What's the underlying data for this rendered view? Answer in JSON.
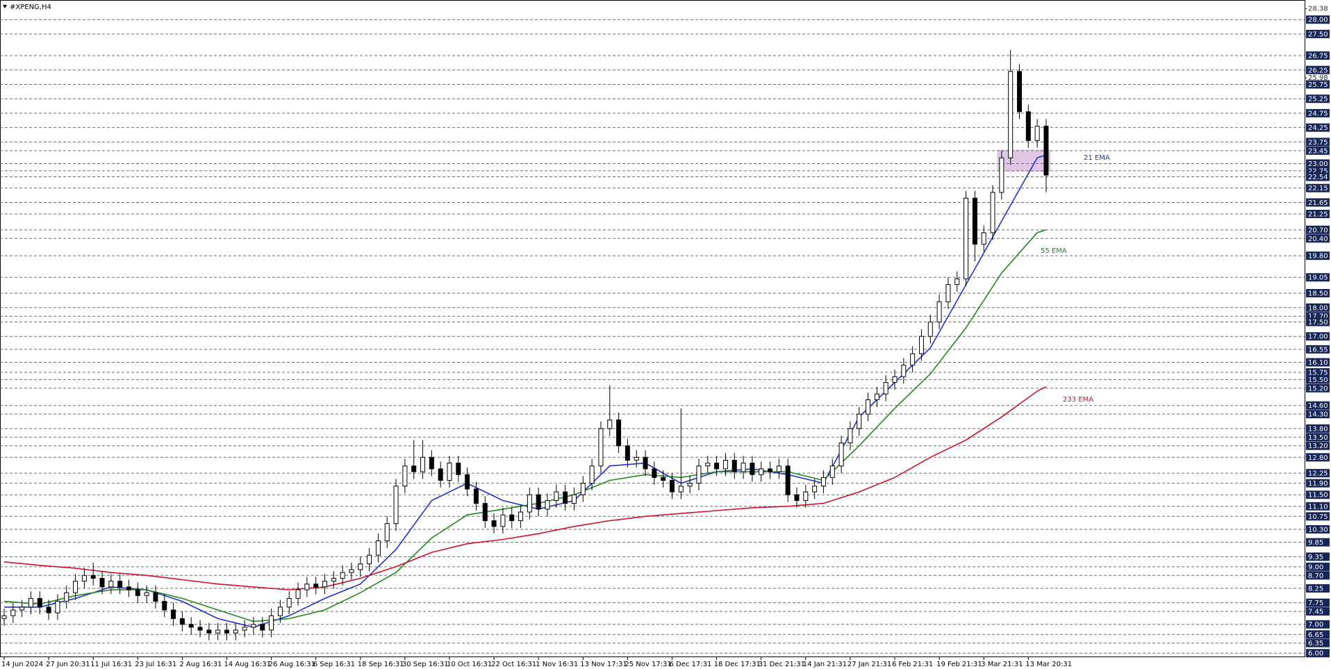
{
  "chart_data": {
    "type": "candlestick",
    "title": "#XPENG,H4",
    "categories": [
      "14 Jun 2024",
      null,
      null,
      null,
      null,
      "27 Jun 20:31",
      null,
      null,
      null,
      null,
      "11 Jul 16:31",
      null,
      null,
      null,
      null,
      "23 Jul 16:31",
      null,
      null,
      null,
      null,
      "2 Aug 16:31",
      null,
      null,
      null,
      null,
      "14 Aug 16:31",
      null,
      null,
      null,
      null,
      "26 Aug 16:31",
      null,
      null,
      null,
      null,
      "6 Sep 16:31",
      null,
      null,
      null,
      null,
      "18 Sep 16:31",
      null,
      null,
      null,
      null,
      "30 Sep 16:31",
      null,
      null,
      null,
      null,
      "10 Oct 16:31",
      null,
      null,
      null,
      null,
      "22 Oct 16:31",
      null,
      null,
      null,
      null,
      "1 Nov 16:31",
      null,
      null,
      null,
      null,
      "13 Nov 17:31",
      null,
      null,
      null,
      null,
      "25 Nov 17:31",
      null,
      null,
      null,
      null,
      "6 Dec 17:31",
      null,
      null,
      null,
      null,
      "18 Dec 17:31",
      null,
      null,
      null,
      null,
      "31 Dec 21:31",
      null,
      null,
      null,
      null,
      "14 Jan 21:31",
      null,
      null,
      null,
      null,
      "27 Jan 21:31",
      null,
      null,
      null,
      null,
      "6 Feb 21:31",
      null,
      null,
      null,
      null,
      "19 Feb 21:31",
      null,
      null,
      null,
      null,
      "3 Mar 21:31",
      null,
      null,
      null,
      null,
      "13 Mar 20:31",
      null,
      null
    ],
    "open": [
      7.2,
      7.3,
      7.5,
      7.6,
      7.9,
      7.6,
      7.4,
      7.8,
      8.1,
      8.5,
      8.7,
      8.6,
      8.3,
      8.5,
      8.3,
      8.2,
      8.0,
      8.1,
      7.8,
      7.5,
      7.2,
      7.0,
      6.9,
      6.8,
      6.7,
      6.8,
      6.7,
      6.8,
      6.9,
      7.0,
      6.8,
      7.3,
      7.6,
      7.9,
      8.2,
      8.4,
      8.3,
      8.5,
      8.6,
      8.8,
      8.9,
      9.1,
      9.4,
      9.9,
      10.5,
      11.8,
      12.5,
      12.3,
      12.8,
      12.4,
      12.0,
      12.6,
      12.2,
      11.7,
      11.2,
      10.6,
      10.4,
      10.8,
      10.6,
      10.9,
      11.5,
      11.0,
      11.3,
      11.6,
      11.2,
      11.5,
      11.9,
      12.5,
      13.8,
      14.1,
      13.2,
      12.7,
      12.8,
      12.4,
      12.1,
      12.0,
      11.6,
      11.8,
      11.9,
      12.5,
      12.6,
      12.4,
      12.7,
      12.3,
      12.6,
      12.2,
      12.4,
      12.3,
      12.5,
      11.5,
      11.3,
      11.6,
      11.8,
      12.1,
      12.5,
      13.3,
      13.8,
      14.3,
      14.8,
      15.0,
      15.4,
      15.6,
      16.0,
      16.4,
      17.0,
      17.5,
      18.2,
      18.8,
      19.0,
      21.8,
      20.2,
      20.6,
      22.0,
      23.2,
      26.2,
      24.8,
      23.8,
      24.3
    ],
    "high": [
      7.55,
      7.75,
      7.85,
      8.15,
      8.15,
      7.85,
      8.05,
      8.35,
      8.75,
      8.95,
      9.15,
      8.85,
      8.75,
      8.75,
      8.55,
      8.45,
      8.35,
      8.35,
      8.05,
      7.75,
      7.45,
      7.25,
      7.15,
      7.05,
      7.05,
      7.05,
      7.05,
      7.15,
      7.25,
      7.25,
      7.55,
      7.85,
      8.15,
      8.45,
      8.65,
      8.65,
      8.75,
      8.85,
      9.05,
      9.15,
      9.35,
      9.65,
      10.15,
      10.75,
      12.05,
      12.75,
      13.4,
      13.4,
      13.05,
      12.65,
      12.85,
      12.85,
      12.45,
      11.95,
      11.45,
      10.85,
      11.05,
      11.05,
      11.15,
      11.75,
      11.75,
      11.55,
      11.85,
      11.85,
      11.75,
      12.15,
      12.75,
      14.05,
      15.3,
      14.35,
      13.45,
      13.05,
      13.05,
      12.65,
      12.35,
      12.25,
      14.5,
      12.15,
      12.75,
      12.85,
      12.85,
      12.95,
      12.95,
      12.85,
      12.85,
      12.65,
      12.65,
      12.75,
      12.75,
      11.75,
      11.85,
      12.05,
      12.35,
      12.75,
      13.55,
      14.05,
      14.55,
      15.05,
      15.25,
      15.65,
      15.85,
      16.25,
      16.65,
      17.25,
      17.75,
      18.45,
      19.05,
      19.25,
      22.05,
      22.05,
      20.85,
      22.25,
      23.45,
      26.95,
      26.45,
      25.05,
      24.55,
      24.55
    ],
    "low": [
      6.95,
      7.05,
      7.25,
      7.35,
      7.35,
      7.15,
      7.15,
      7.55,
      7.85,
      8.25,
      8.35,
      8.05,
      8.05,
      8.05,
      7.95,
      7.75,
      7.75,
      7.55,
      7.25,
      6.95,
      6.75,
      6.65,
      6.55,
      6.45,
      6.45,
      6.45,
      6.45,
      6.55,
      6.65,
      6.55,
      6.55,
      7.05,
      7.35,
      7.65,
      7.95,
      8.05,
      8.05,
      8.25,
      8.35,
      8.55,
      8.65,
      8.85,
      9.15,
      9.65,
      10.25,
      11.55,
      12.05,
      12.05,
      12.15,
      11.75,
      11.75,
      11.95,
      11.45,
      10.95,
      10.35,
      10.15,
      10.15,
      10.35,
      10.35,
      10.65,
      10.75,
      10.75,
      11.05,
      10.95,
      10.95,
      11.25,
      11.65,
      12.25,
      13.55,
      12.95,
      12.45,
      12.45,
      12.15,
      11.85,
      11.75,
      11.35,
      11.35,
      11.55,
      11.65,
      12.25,
      12.15,
      12.15,
      12.05,
      12.05,
      11.95,
      11.95,
      12.05,
      12.05,
      11.25,
      11.05,
      11.05,
      11.35,
      11.55,
      11.85,
      12.25,
      13.05,
      13.55,
      14.05,
      14.55,
      14.75,
      15.15,
      15.35,
      15.75,
      16.15,
      16.75,
      17.25,
      17.95,
      18.55,
      18.75,
      19.6,
      19.95,
      20.35,
      21.75,
      22.95,
      24.55,
      23.55,
      23.55,
      22.0
    ],
    "close": [
      7.3,
      7.5,
      7.6,
      7.9,
      7.6,
      7.4,
      7.8,
      8.1,
      8.5,
      8.7,
      8.6,
      8.3,
      8.5,
      8.3,
      8.2,
      8.0,
      8.1,
      7.8,
      7.5,
      7.2,
      7.0,
      6.9,
      6.8,
      6.7,
      6.8,
      6.7,
      6.8,
      6.9,
      7.0,
      6.8,
      7.3,
      7.6,
      7.9,
      8.2,
      8.4,
      8.3,
      8.5,
      8.6,
      8.8,
      8.9,
      9.1,
      9.4,
      9.9,
      10.5,
      11.8,
      12.5,
      12.3,
      12.8,
      12.4,
      12.0,
      12.6,
      12.2,
      11.7,
      11.2,
      10.6,
      10.4,
      10.8,
      10.6,
      10.9,
      11.5,
      11.0,
      11.3,
      11.6,
      11.2,
      11.5,
      11.9,
      12.5,
      13.8,
      14.1,
      13.2,
      12.7,
      12.8,
      12.4,
      12.1,
      12.0,
      11.6,
      11.8,
      11.9,
      12.5,
      12.6,
      12.4,
      12.7,
      12.3,
      12.6,
      12.2,
      12.4,
      12.3,
      12.5,
      11.5,
      11.3,
      11.6,
      11.8,
      12.1,
      12.5,
      13.3,
      13.8,
      14.3,
      14.8,
      15.0,
      15.4,
      15.6,
      16.0,
      16.4,
      17.0,
      17.5,
      18.2,
      18.8,
      19.0,
      21.8,
      20.2,
      20.6,
      22.0,
      23.2,
      26.2,
      24.8,
      23.8,
      24.3,
      22.6
    ],
    "up_color": "#ffffff",
    "down_color": "#000000",
    "ylim": [
      5.86,
      28.56
    ],
    "yticks": [
      28.38,
      25.98
    ],
    "levels": [
      {
        "value": 28,
        "label": "28.00"
      },
      {
        "value": 27.5,
        "label": "27.50"
      },
      26.75,
      26.25,
      25.75,
      25.25,
      24.75,
      24.25,
      23.75,
      23.45,
      {
        "value": 23,
        "label": "23.00"
      },
      22.75,
      22.54,
      22.15,
      21.65,
      21.25,
      {
        "value": 20.7,
        "label": "20.70"
      },
      {
        "value": 20.4,
        "label": "20.40"
      },
      {
        "value": 19.8,
        "label": "19.80"
      },
      19.05,
      {
        "value": 18.5,
        "label": "18.50"
      },
      {
        "value": 18,
        "label": "18.00"
      },
      {
        "value": 17.7,
        "label": "17.70"
      },
      {
        "value": 17.5,
        "label": "17.50"
      },
      {
        "value": 17,
        "label": "17.00"
      },
      16.55,
      {
        "value": 16.1,
        "label": "16.10"
      },
      15.75,
      {
        "value": 15.5,
        "label": "15.50"
      },
      {
        "value": 15.2,
        "label": "15.20"
      },
      {
        "value": 14.6,
        "label": "14.60"
      },
      {
        "value": 14.3,
        "label": "14.30"
      },
      {
        "value": 13.8,
        "label": "13.80"
      },
      {
        "value": 13.5,
        "label": "13.50"
      },
      {
        "value": 13.2,
        "label": "13.20"
      },
      {
        "value": 12.8,
        "label": "12.80"
      },
      12.25,
      {
        "value": 11.9,
        "label": "11.90"
      },
      {
        "value": 11.5,
        "label": "11.50"
      },
      {
        "value": 11.1,
        "label": "11.10"
      },
      10.75,
      {
        "value": 10.3,
        "label": "10.30"
      },
      9.85,
      9.35,
      {
        "value": 9,
        "label": "9.00"
      },
      {
        "value": 8.7,
        "label": "8.70"
      },
      8.25,
      7.75,
      7.45,
      {
        "value": 7,
        "label": "7.00"
      },
      6.65,
      6.35,
      {
        "value": 6,
        "label": "6.00"
      }
    ],
    "lines": [
      {
        "name": "21 EMA",
        "color": "#1f2fd0",
        "x": [
          0,
          4,
          8,
          12,
          16,
          20,
          24,
          28,
          32,
          36,
          40,
          44,
          48,
          52,
          56,
          60,
          64,
          68,
          72,
          76,
          80,
          84,
          88,
          92,
          96,
          100,
          104,
          108,
          112,
          116,
          117
        ],
        "values": [
          7.6,
          7.6,
          7.9,
          8.3,
          8.2,
          7.8,
          7.2,
          6.9,
          7.3,
          7.9,
          8.4,
          9.6,
          11.3,
          11.9,
          11.3,
          11.0,
          11.3,
          12.5,
          12.6,
          11.9,
          12.3,
          12.4,
          12.2,
          11.9,
          14.2,
          15.4,
          16.6,
          18.8,
          21.0,
          23.2,
          23.3
        ]
      },
      {
        "name": "55 EMA",
        "color": "#1e8a1e",
        "x": [
          0,
          4,
          8,
          12,
          16,
          20,
          24,
          28,
          32,
          36,
          40,
          44,
          48,
          52,
          56,
          60,
          64,
          68,
          72,
          76,
          80,
          84,
          88,
          92,
          96,
          100,
          104,
          108,
          112,
          116,
          117
        ],
        "values": [
          7.8,
          7.7,
          8.0,
          8.2,
          8.2,
          7.9,
          7.5,
          7.1,
          7.2,
          7.5,
          8.1,
          8.8,
          10.0,
          10.8,
          11.0,
          11.2,
          11.5,
          12.0,
          12.2,
          12.1,
          12.3,
          12.3,
          12.3,
          12.0,
          13.2,
          14.5,
          15.7,
          17.3,
          19.2,
          20.6,
          20.7
        ]
      },
      {
        "name": "233 EMA",
        "color": "#d0102a",
        "x": [
          0,
          4,
          8,
          12,
          16,
          20,
          24,
          28,
          32,
          36,
          40,
          44,
          48,
          52,
          56,
          60,
          64,
          68,
          72,
          76,
          80,
          84,
          88,
          92,
          96,
          100,
          104,
          108,
          112,
          116,
          117
        ],
        "values": [
          9.17,
          9.05,
          8.95,
          8.8,
          8.7,
          8.55,
          8.4,
          8.3,
          8.2,
          8.3,
          8.6,
          9.0,
          9.5,
          9.8,
          9.95,
          10.15,
          10.4,
          10.6,
          10.75,
          10.85,
          10.95,
          11.05,
          11.1,
          11.2,
          11.6,
          12.1,
          12.8,
          13.4,
          14.2,
          15.1,
          15.25
        ]
      }
    ],
    "zone": {
      "x": [
        111.5,
        117.5
      ],
      "y": [
        22.72,
        23.48
      ],
      "color": "#d9bde0"
    }
  }
}
